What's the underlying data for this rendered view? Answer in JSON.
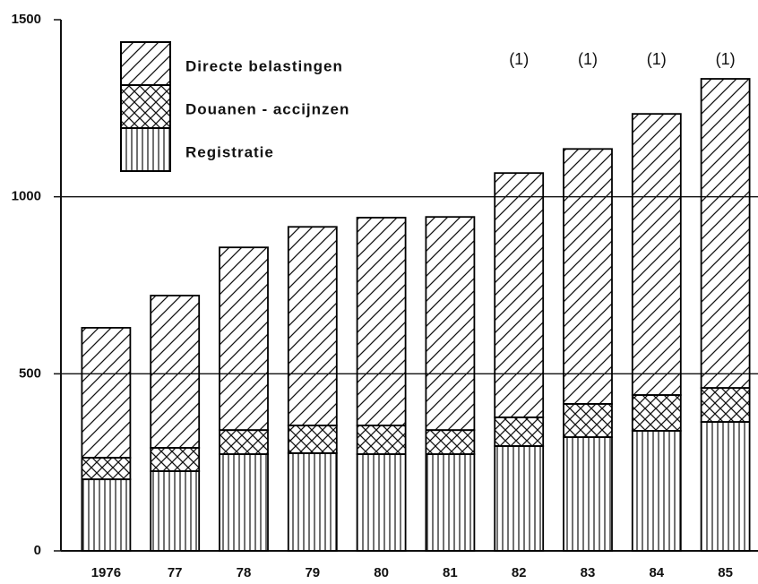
{
  "chart_data": {
    "type": "stacked_bar",
    "categories": [
      "1976",
      "77",
      "78",
      "79",
      "80",
      "81",
      "82",
      "83",
      "84",
      "85"
    ],
    "series": [
      {
        "name": "Registratie",
        "color": "#000000",
        "pattern": "vertical",
        "values": [
          202,
          225,
          273,
          276,
          273,
          273,
          296,
          321,
          339,
          364
        ]
      },
      {
        "name": "Douanen - accijnzen",
        "color": "#000000",
        "pattern": "crosshatch",
        "values": [
          61,
          66,
          68,
          78,
          81,
          68,
          81,
          94,
          101,
          96
        ]
      },
      {
        "name": "Directe belastingen",
        "color": "#000000",
        "pattern": "diagonal",
        "values": [
          367,
          430,
          516,
          561,
          587,
          602,
          690,
          720,
          794,
          873
        ]
      }
    ],
    "annotations": [
      {
        "label": "(1)",
        "x": "82"
      },
      {
        "label": "(1)",
        "x": "83"
      },
      {
        "label": "(1)",
        "x": "84"
      },
      {
        "label": "(1)",
        "x": "85"
      }
    ],
    "ylim": [
      0,
      1500
    ],
    "yticks": [
      0,
      500,
      1000,
      1500
    ],
    "grid": true
  }
}
